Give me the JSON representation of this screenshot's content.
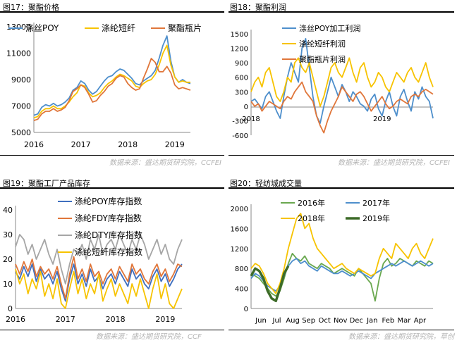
{
  "panels": [
    {
      "title": "图17：聚酯价格",
      "source": "数据来源：盛达期货研究院，CCFEI"
    },
    {
      "title": "图18：聚酯利润",
      "source": "数据来源：盛达期货研究院，CCFEI"
    },
    {
      "title": "图19：聚酯工厂产品库存",
      "source": "数据来源：盛达期货研究院，CCF"
    },
    {
      "title": "图20：轻纺城成交量",
      "source": "数据来源：盛达期货研究院，草创"
    }
  ],
  "colors": {
    "blue": "#4e8fcc",
    "yellow": "#f7c300",
    "orange": "#e0763a",
    "gray": "#a6a6a6",
    "green": "#6aa84f",
    "darkgreen": "#3d6b28",
    "darkblue": "#3f6fbf"
  },
  "chart_data": [
    {
      "type": "line",
      "title": "",
      "xlabel": "",
      "ylabel": "",
      "ylim": [
        5000,
        13000
      ],
      "yticks": [
        "5000",
        "7000",
        "9000",
        "11000",
        "13000"
      ],
      "xticks": [
        "2016",
        "2017",
        "2018",
        "2019"
      ],
      "legend_position": "top-left",
      "x_months": [
        0,
        1,
        2,
        3,
        4,
        5,
        6,
        7,
        8,
        9,
        10,
        11,
        12,
        13,
        14,
        15,
        16,
        17,
        18,
        19,
        20,
        21,
        22,
        23,
        24,
        25,
        26,
        27,
        28,
        29,
        30,
        31,
        32,
        33,
        34,
        35,
        36,
        37,
        38,
        39,
        40
      ],
      "series": [
        {
          "name": "涤丝POY",
          "color": "blue",
          "values": [
            6300,
            6400,
            6900,
            7100,
            7000,
            7200,
            7000,
            7100,
            7300,
            7600,
            8200,
            8400,
            8900,
            8700,
            8200,
            7900,
            8100,
            8500,
            8900,
            9200,
            9300,
            9600,
            9800,
            9700,
            9400,
            9100,
            8700,
            8600,
            8900,
            9100,
            9300,
            9700,
            10600,
            11600,
            12300,
            10400,
            9200,
            8800,
            9000,
            8800,
            8700
          ]
        },
        {
          "name": "涤纶短纤",
          "color": "yellow",
          "values": [
            6100,
            6200,
            6600,
            6800,
            6800,
            7000,
            6800,
            6800,
            7000,
            7300,
            7700,
            8000,
            8600,
            8500,
            8000,
            7700,
            7800,
            8000,
            8400,
            8700,
            8900,
            9200,
            9400,
            9300,
            9100,
            8900,
            8500,
            8400,
            8700,
            8900,
            9000,
            9400,
            10100,
            11000,
            11600,
            10100,
            9200,
            8800,
            8900,
            8800,
            8800
          ]
        },
        {
          "name": "聚酯瓶片",
          "color": "orange",
          "values": [
            5900,
            6000,
            6400,
            6600,
            6600,
            6800,
            6600,
            6700,
            6900,
            7400,
            8100,
            8300,
            8600,
            8400,
            7900,
            7300,
            7400,
            7800,
            8100,
            8500,
            8700,
            9100,
            9300,
            9200,
            8700,
            8400,
            8200,
            8300,
            9100,
            9800,
            10600,
            10300,
            9600,
            9600,
            10000,
            9500,
            8600,
            8300,
            8400,
            8300,
            8200
          ]
        }
      ]
    },
    {
      "type": "line",
      "title": "",
      "xlabel": "",
      "ylabel": "",
      "ylim": [
        -600,
        1500
      ],
      "yticks": [
        "-600",
        "-300",
        "0",
        "300",
        "600",
        "900",
        "1200",
        "1500"
      ],
      "xticks": [
        "2018",
        "2019"
      ],
      "legend_position": "top-center",
      "x_months": [
        0,
        1,
        2,
        3,
        4,
        5,
        6,
        7,
        8,
        9,
        10,
        11,
        12,
        13,
        14,
        15,
        16,
        17,
        18,
        19,
        20,
        21,
        22,
        23,
        24,
        25,
        26,
        27,
        28,
        29,
        30,
        31,
        32,
        33,
        34,
        35,
        36,
        37,
        38,
        39,
        40,
        41,
        42,
        43,
        44,
        45,
        46,
        47,
        48,
        49,
        50
      ],
      "series": [
        {
          "name": "涤丝POY加工利润",
          "color": "blue",
          "values": [
            100,
            150,
            50,
            -50,
            200,
            300,
            100,
            -100,
            -250,
            200,
            600,
            900,
            700,
            500,
            1200,
            1400,
            800,
            200,
            -200,
            -350,
            0,
            300,
            600,
            400,
            200,
            450,
            300,
            100,
            300,
            200,
            50,
            0,
            -100,
            150,
            250,
            -50,
            -200,
            100,
            300,
            0,
            -200,
            200,
            350,
            100,
            -100,
            300,
            150,
            400,
            200,
            100,
            -250
          ]
        },
        {
          "name": "涤纶短纤利润",
          "color": "yellow",
          "values": [
            300,
            500,
            600,
            400,
            700,
            800,
            500,
            200,
            100,
            300,
            600,
            500,
            900,
            1000,
            800,
            700,
            900,
            600,
            300,
            0,
            200,
            500,
            800,
            900,
            700,
            600,
            800,
            1000,
            700,
            500,
            800,
            900,
            600,
            400,
            500,
            700,
            600,
            400,
            300,
            500,
            700,
            600,
            500,
            700,
            800,
            600,
            500,
            700,
            900,
            600,
            400
          ]
        },
        {
          "name": "聚酯瓶片利润",
          "color": "orange",
          "values": [
            100,
            0,
            50,
            -100,
            0,
            100,
            50,
            0,
            -50,
            100,
            200,
            150,
            300,
            400,
            500,
            300,
            200,
            100,
            -200,
            -400,
            -550,
            -300,
            -100,
            50,
            200,
            400,
            300,
            200,
            100,
            250,
            300,
            200,
            50,
            -100,
            0,
            100,
            200,
            50,
            -50,
            0,
            100,
            150,
            100,
            50,
            200,
            250,
            200,
            300,
            350,
            300,
            250
          ]
        }
      ]
    },
    {
      "type": "line",
      "title": "",
      "xlabel": "",
      "ylabel": "",
      "ylim": [
        0,
        40
      ],
      "yticks": [
        "0",
        "10",
        "20",
        "30",
        "40"
      ],
      "xticks": [
        "2016",
        "2017",
        "2018",
        "2019"
      ],
      "legend_position": "top-center",
      "x_months": [
        0,
        1,
        2,
        3,
        4,
        5,
        6,
        7,
        8,
        9,
        10,
        11,
        12,
        13,
        14,
        15,
        16,
        17,
        18,
        19,
        20,
        21,
        22,
        23,
        24,
        25,
        26,
        27,
        28,
        29,
        30,
        31,
        32,
        33,
        34,
        35,
        36,
        37,
        38,
        39,
        40
      ],
      "series": [
        {
          "name": "涤纶POY库存指数",
          "color": "darkblue",
          "values": [
            15,
            12,
            17,
            13,
            18,
            11,
            16,
            12,
            14,
            10,
            15,
            8,
            3,
            12,
            18,
            10,
            14,
            9,
            16,
            11,
            13,
            8,
            12,
            14,
            10,
            15,
            12,
            9,
            16,
            12,
            14,
            10,
            8,
            13,
            16,
            11,
            14,
            9,
            12,
            16,
            18
          ]
        },
        {
          "name": "涤纶FDY库存指数",
          "color": "orange",
          "values": [
            18,
            14,
            19,
            15,
            20,
            13,
            17,
            14,
            16,
            12,
            17,
            10,
            4,
            14,
            21,
            12,
            16,
            11,
            18,
            13,
            15,
            10,
            14,
            16,
            12,
            17,
            14,
            11,
            18,
            14,
            16,
            12,
            10,
            15,
            18,
            13,
            16,
            11,
            14,
            18,
            17
          ]
        },
        {
          "name": "涤纶DTY库存指数",
          "color": "gray",
          "values": [
            25,
            30,
            28,
            22,
            26,
            20,
            24,
            28,
            22,
            18,
            24,
            16,
            10,
            18,
            24,
            22,
            26,
            20,
            28,
            24,
            30,
            22,
            26,
            28,
            24,
            30,
            26,
            22,
            28,
            24,
            30,
            26,
            20,
            24,
            28,
            22,
            26,
            20,
            18,
            24,
            28
          ]
        },
        {
          "name": "涤纶短纤库存指数",
          "color": "yellow",
          "values": [
            16,
            10,
            14,
            6,
            12,
            8,
            15,
            5,
            10,
            4,
            12,
            2,
            0,
            8,
            15,
            6,
            12,
            4,
            10,
            6,
            14,
            3,
            8,
            12,
            5,
            10,
            6,
            2,
            10,
            5,
            12,
            6,
            0,
            8,
            14,
            4,
            10,
            2,
            0,
            4,
            8
          ]
        }
      ]
    },
    {
      "type": "line",
      "title": "",
      "xlabel": "",
      "ylabel": "",
      "ylim": [
        0,
        2000
      ],
      "yticks": [
        "0",
        "400",
        "800",
        "1200",
        "1600",
        "2000"
      ],
      "xticks": [
        "Jun",
        "Jul",
        "Aug",
        "Sep",
        "Oct",
        "Nov",
        "Dec",
        "Jan",
        "Feb",
        "Mar",
        "Apr"
      ],
      "legend_position": "top-center",
      "x_weeks": [
        0,
        1,
        2,
        3,
        4,
        5,
        6,
        7,
        8,
        9,
        10,
        11,
        12,
        13,
        14,
        15,
        16,
        17,
        18,
        19,
        20,
        21,
        22,
        23,
        24,
        25,
        26,
        27,
        28,
        29,
        30,
        31,
        32,
        33,
        34,
        35,
        36,
        37,
        38,
        39,
        40,
        41,
        42,
        43,
        44
      ],
      "series": [
        {
          "name": "2016年",
          "color": "green",
          "values": [
            700,
            650,
            600,
            500,
            400,
            300,
            250,
            350,
            600,
            900,
            1100,
            1000,
            950,
            1050,
            900,
            850,
            800,
            900,
            850,
            800,
            700,
            750,
            800,
            750,
            700,
            650,
            800,
            700,
            600,
            500,
            150,
            600,
            900,
            1000,
            850,
            900,
            1000,
            950,
            900,
            850,
            950,
            900,
            850,
            950,
            900
          ]
        },
        {
          "name": "2017年",
          "color": "blue",
          "values": [
            600,
            700,
            650,
            550,
            450,
            400,
            350,
            450,
            650,
            850,
            950,
            1000,
            900,
            950,
            850,
            800,
            750,
            850,
            800,
            750,
            700,
            700,
            750,
            700,
            650,
            700,
            750,
            700,
            650,
            600,
            700,
            750,
            800,
            850,
            900,
            850,
            900,
            950,
            900,
            850,
            900,
            950,
            900,
            850,
            900
          ]
        },
        {
          "name": "2018年",
          "color": "yellow",
          "values": [
            800,
            900,
            850,
            700,
            500,
            400,
            300,
            500,
            800,
            1200,
            1500,
            1800,
            1900,
            1600,
            1700,
            1400,
            1200,
            1100,
            1000,
            900,
            800,
            850,
            900,
            800,
            750,
            700,
            800,
            750,
            700,
            650,
            700,
            1000,
            1200,
            1100,
            1000,
            1300,
            1200,
            1100,
            1000,
            1200,
            1300,
            1100,
            1000,
            1200,
            1400
          ]
        },
        {
          "name": "2019年",
          "color": "darkgreen",
          "values": [
            650,
            800,
            750,
            600,
            350,
            200,
            150,
            400,
            700,
            850,
            null,
            null,
            null,
            null,
            null,
            null,
            null,
            null,
            null,
            null,
            null,
            null,
            null,
            null,
            null,
            null,
            null,
            null,
            null,
            null,
            null,
            null,
            null,
            null,
            null,
            null,
            null,
            null,
            null,
            null,
            null,
            null,
            null,
            null,
            null
          ]
        }
      ]
    }
  ]
}
